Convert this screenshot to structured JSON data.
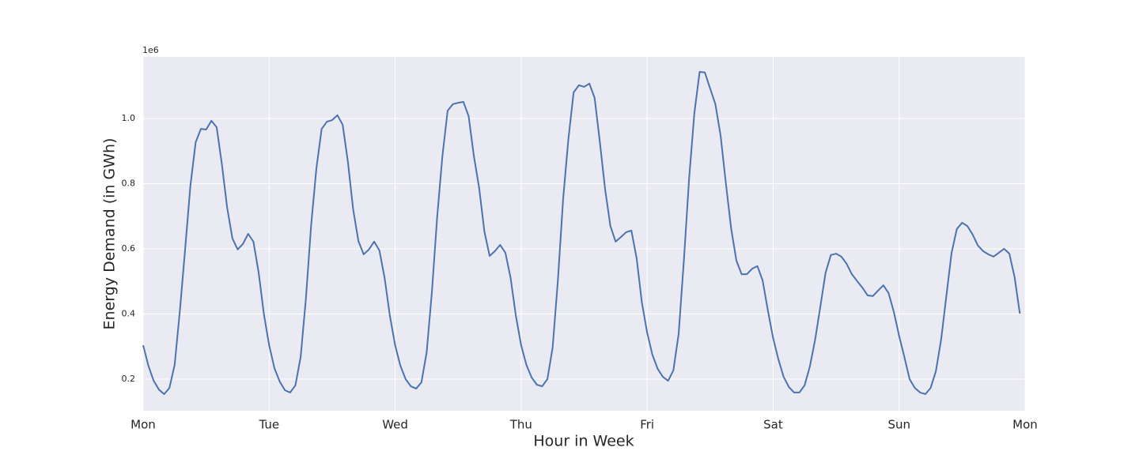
{
  "chart_data": {
    "type": "line",
    "x_label": "Hour in Week",
    "y_label": "Energy Demand (in GWh)",
    "y_offset_label": "1e6",
    "x": [
      0,
      1,
      2,
      3,
      4,
      5,
      6,
      7,
      8,
      9,
      10,
      11,
      12,
      13,
      14,
      15,
      16,
      17,
      18,
      19,
      20,
      21,
      22,
      23,
      24,
      25,
      26,
      27,
      28,
      29,
      30,
      31,
      32,
      33,
      34,
      35,
      36,
      37,
      38,
      39,
      40,
      41,
      42,
      43,
      44,
      45,
      46,
      47,
      48,
      49,
      50,
      51,
      52,
      53,
      54,
      55,
      56,
      57,
      58,
      59,
      60,
      61,
      62,
      63,
      64,
      65,
      66,
      67,
      68,
      69,
      70,
      71,
      72,
      73,
      74,
      75,
      76,
      77,
      78,
      79,
      80,
      81,
      82,
      83,
      84,
      85,
      86,
      87,
      88,
      89,
      90,
      91,
      92,
      93,
      94,
      95,
      96,
      97,
      98,
      99,
      100,
      101,
      102,
      103,
      104,
      105,
      106,
      107,
      108,
      109,
      110,
      111,
      112,
      113,
      114,
      115,
      116,
      117,
      118,
      119,
      120,
      121,
      122,
      123,
      124,
      125,
      126,
      127,
      128,
      129,
      130,
      131,
      132,
      133,
      134,
      135,
      136,
      137,
      138,
      139,
      140,
      141,
      142,
      143,
      144,
      145,
      146,
      147,
      148,
      149,
      150,
      151,
      152,
      153,
      154,
      155,
      156,
      157,
      158,
      159,
      160,
      161,
      162,
      163,
      164,
      165,
      166,
      167
    ],
    "series": [
      {
        "color": "#4c72b0",
        "values": [
          0.304,
          0.241,
          0.195,
          0.168,
          0.154,
          0.173,
          0.244,
          0.411,
          0.6,
          0.794,
          0.927,
          0.968,
          0.966,
          0.993,
          0.973,
          0.859,
          0.726,
          0.632,
          0.598,
          0.615,
          0.646,
          0.622,
          0.527,
          0.399,
          0.304,
          0.234,
          0.193,
          0.166,
          0.159,
          0.181,
          0.268,
          0.447,
          0.673,
          0.847,
          0.968,
          0.99,
          0.995,
          1.01,
          0.981,
          0.867,
          0.721,
          0.624,
          0.583,
          0.598,
          0.622,
          0.595,
          0.51,
          0.394,
          0.304,
          0.241,
          0.2,
          0.178,
          0.171,
          0.19,
          0.282,
          0.467,
          0.697,
          0.884,
          1.024,
          1.044,
          1.048,
          1.051,
          1.007,
          0.884,
          0.787,
          0.653,
          0.578,
          0.593,
          0.612,
          0.588,
          0.51,
          0.394,
          0.304,
          0.244,
          0.205,
          0.183,
          0.178,
          0.2,
          0.297,
          0.503,
          0.753,
          0.937,
          1.08,
          1.102,
          1.097,
          1.107,
          1.063,
          0.927,
          0.782,
          0.67,
          0.622,
          0.636,
          0.651,
          0.656,
          0.571,
          0.435,
          0.343,
          0.275,
          0.232,
          0.207,
          0.195,
          0.227,
          0.338,
          0.564,
          0.816,
          1.017,
          1.143,
          1.141,
          1.092,
          1.044,
          0.947,
          0.801,
          0.663,
          0.564,
          0.522,
          0.522,
          0.539,
          0.547,
          0.503,
          0.411,
          0.326,
          0.261,
          0.207,
          0.176,
          0.159,
          0.159,
          0.181,
          0.239,
          0.321,
          0.423,
          0.527,
          0.581,
          0.585,
          0.576,
          0.554,
          0.522,
          0.501,
          0.481,
          0.457,
          0.455,
          0.472,
          0.488,
          0.464,
          0.406,
          0.333,
          0.268,
          0.2,
          0.173,
          0.159,
          0.154,
          0.173,
          0.224,
          0.321,
          0.455,
          0.588,
          0.661,
          0.68,
          0.67,
          0.644,
          0.61,
          0.593,
          0.583,
          0.576,
          0.588,
          0.6,
          0.585,
          0.513,
          0.401
        ]
      }
    ],
    "xlim": [
      0,
      168
    ],
    "xticks": [
      {
        "value": 0,
        "label": "Mon"
      },
      {
        "value": 24,
        "label": "Tue"
      },
      {
        "value": 48,
        "label": "Wed"
      },
      {
        "value": 72,
        "label": "Thu"
      },
      {
        "value": 96,
        "label": "Fri"
      },
      {
        "value": 120,
        "label": "Sat"
      },
      {
        "value": 144,
        "label": "Sun"
      },
      {
        "value": 168,
        "label": "Mon"
      }
    ],
    "ylim": [
      0.103,
      1.189
    ],
    "yticks": [
      0.2,
      0.4,
      0.6,
      0.8,
      {
        "value": 1,
        "label": "1.0"
      }
    ],
    "grid": true
  }
}
